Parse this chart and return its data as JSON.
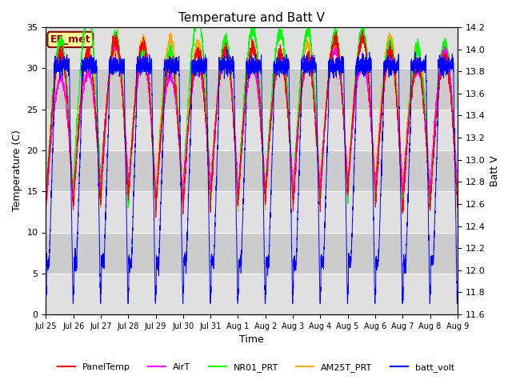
{
  "title": "Temperature and Batt V",
  "xlabel": "Time",
  "ylabel_left": "Temperature (C)",
  "ylabel_right": "Batt V",
  "ylim_left": [
    0,
    35
  ],
  "ylim_right": [
    11.6,
    14.2
  ],
  "station_label": "EE_met",
  "xtick_labels": [
    "Jul 25",
    "Jul 26",
    "Jul 27",
    "Jul 28",
    "Jul 29",
    "Jul 30",
    "Jul 31",
    "Aug 1",
    "Aug 2",
    "Aug 3",
    "Aug 4",
    "Aug 5",
    "Aug 6",
    "Aug 7",
    "Aug 8",
    "Aug 9"
  ],
  "legend": [
    {
      "label": "PanelTemp",
      "color": "#ff0000"
    },
    {
      "label": "AirT",
      "color": "#ff00ff"
    },
    {
      "label": "NR01_PRT",
      "color": "#00ff00"
    },
    {
      "label": "AM25T_PRT",
      "color": "#ffaa00"
    },
    {
      "label": "batt_volt",
      "color": "#0000ff"
    }
  ],
  "bg_color": "#ffffff",
  "plot_bg_color": "#e0e0e0",
  "band_colors": [
    "#e0e0e0",
    "#cccccc"
  ],
  "n_days": 15,
  "pts_per_day": 288,
  "panel_temp_min": 14,
  "panel_temp_max": 33,
  "air_temp_min": 15,
  "air_temp_max": 31,
  "nr01_min": 14,
  "nr01_max": 34,
  "am25_min": 14,
  "am25_max": 33,
  "batt_high": 13.9,
  "batt_low": 11.75,
  "title_fontsize": 11,
  "label_fontsize": 9,
  "tick_fontsize": 8,
  "xtick_fontsize": 7
}
